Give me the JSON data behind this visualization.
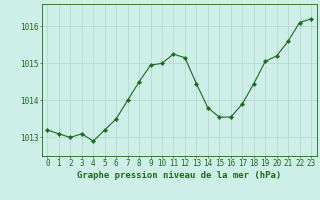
{
  "x": [
    0,
    1,
    2,
    3,
    4,
    5,
    6,
    7,
    8,
    9,
    10,
    11,
    12,
    13,
    14,
    15,
    16,
    17,
    18,
    19,
    20,
    21,
    22,
    23
  ],
  "y": [
    1013.2,
    1013.1,
    1013.0,
    1013.1,
    1012.9,
    1013.2,
    1013.5,
    1014.0,
    1014.5,
    1014.95,
    1015.0,
    1015.25,
    1015.15,
    1014.45,
    1013.8,
    1013.55,
    1013.55,
    1013.9,
    1014.45,
    1015.05,
    1015.2,
    1015.6,
    1016.1,
    1016.2
  ],
  "line_color": "#1a6b1a",
  "marker": "D",
  "marker_size": 2.2,
  "bg_color": "#ceeee8",
  "grid_color": "#b8d8d2",
  "text_color": "#1a6b1a",
  "ylabel_ticks": [
    1013,
    1014,
    1015,
    1016
  ],
  "xlabel": "Graphe pression niveau de la mer (hPa)",
  "ylim": [
    1012.5,
    1016.6
  ],
  "xlim": [
    -0.5,
    23.5
  ],
  "label_fontsize": 6.5,
  "tick_fontsize": 5.5
}
